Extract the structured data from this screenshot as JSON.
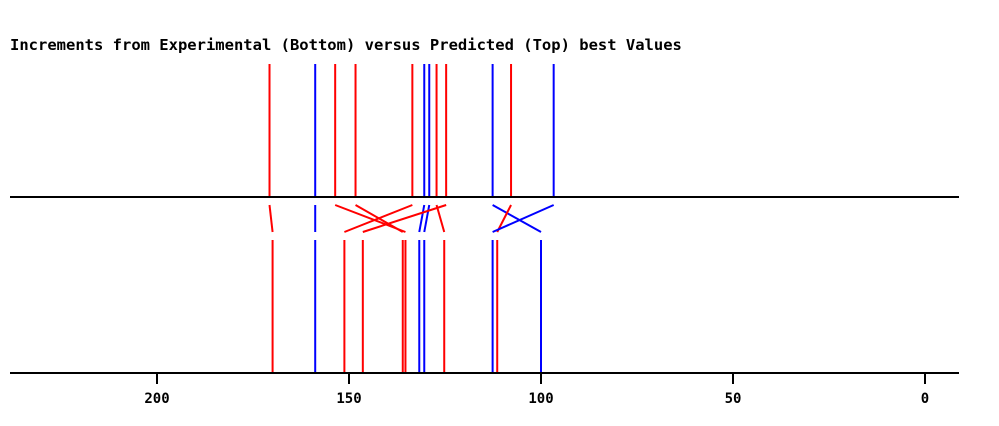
{
  "chart_data": {
    "type": "line",
    "title": "Increments from Experimental (Bottom) versus Predicted (Top) best Values",
    "xlabel": "",
    "ylabel": "",
    "x_axis": {
      "direction": "reversed",
      "xlim": [
        240,
        -9
      ],
      "ticks": [
        200,
        150,
        100,
        50,
        0
      ],
      "tick_labels": [
        "200",
        "150",
        "100",
        "50",
        "0"
      ]
    },
    "grid": false,
    "legend": "none",
    "colors": {
      "red": "#ff0000",
      "blue": "#0000ff",
      "axis": "#000000"
    },
    "series": [
      {
        "panel": "top",
        "lines": [
          {
            "x": 170.7,
            "color": "red"
          },
          {
            "x": 158.8,
            "color": "blue"
          },
          {
            "x": 153.6,
            "color": "red"
          },
          {
            "x": 148.3,
            "color": "red"
          },
          {
            "x": 133.5,
            "color": "red"
          },
          {
            "x": 130.4,
            "color": "blue"
          },
          {
            "x": 129.1,
            "color": "blue"
          },
          {
            "x": 127.2,
            "color": "red"
          },
          {
            "x": 124.7,
            "color": "red"
          },
          {
            "x": 112.6,
            "color": "blue"
          },
          {
            "x": 107.8,
            "color": "red"
          },
          {
            "x": 96.7,
            "color": "blue"
          }
        ]
      },
      {
        "panel": "bottom",
        "lines": [
          {
            "x": 169.9,
            "color": "red"
          },
          {
            "x": 158.8,
            "color": "blue"
          },
          {
            "x": 151.2,
            "color": "red"
          },
          {
            "x": 146.4,
            "color": "red"
          },
          {
            "x": 136.0,
            "color": "red"
          },
          {
            "x": 135.3,
            "color": "red"
          },
          {
            "x": 131.7,
            "color": "blue"
          },
          {
            "x": 130.4,
            "color": "blue"
          },
          {
            "x": 125.2,
            "color": "red"
          },
          {
            "x": 112.6,
            "color": "blue"
          },
          {
            "x": 111.4,
            "color": "red"
          },
          {
            "x": 100.0,
            "color": "blue"
          }
        ]
      }
    ],
    "matches": [
      {
        "top": 170.7,
        "bottom": 169.9,
        "color": "red"
      },
      {
        "top": 158.8,
        "bottom": 158.8,
        "color": "blue"
      },
      {
        "top": 153.6,
        "bottom": 135.3,
        "color": "red"
      },
      {
        "top": 148.3,
        "bottom": 136.0,
        "color": "red"
      },
      {
        "top": 133.5,
        "bottom": 151.2,
        "color": "red"
      },
      {
        "top": 130.4,
        "bottom": 131.7,
        "color": "blue"
      },
      {
        "top": 129.1,
        "bottom": 130.4,
        "color": "blue"
      },
      {
        "top": 127.2,
        "bottom": 125.2,
        "color": "red"
      },
      {
        "top": 124.7,
        "bottom": 146.4,
        "color": "red"
      },
      {
        "top": 112.6,
        "bottom": 100.0,
        "color": "blue"
      },
      {
        "top": 107.8,
        "bottom": 111.4,
        "color": "red"
      },
      {
        "top": 96.7,
        "bottom": 112.6,
        "color": "blue"
      }
    ]
  }
}
